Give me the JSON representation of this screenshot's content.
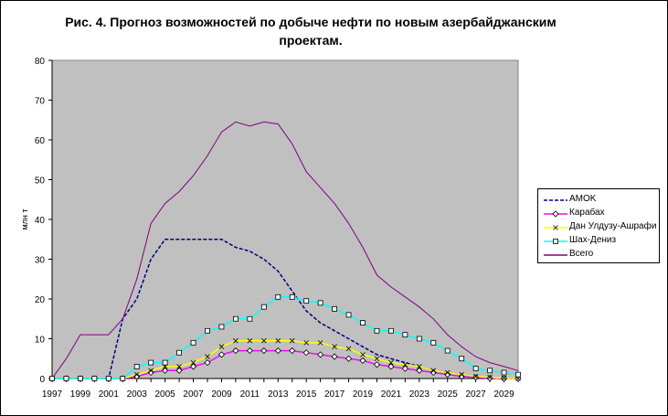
{
  "chart_data": {
    "type": "line",
    "title": "Рис. 4. Прогноз возможностей по добыче нефти по новым азербайджанским проектам.",
    "title_lines": [
      "Рис. 4. Прогноз возможностей по добыче нефти по новым азербайджанским",
      "проектам."
    ],
    "xlabel": "",
    "ylabel": "млн т",
    "ylim": [
      0,
      80
    ],
    "yticks": [
      0,
      10,
      20,
      30,
      40,
      50,
      60,
      70,
      80
    ],
    "xlim": [
      1997,
      2030
    ],
    "xticks": [
      1997,
      1999,
      2001,
      2003,
      2005,
      2007,
      2009,
      2011,
      2013,
      2015,
      2017,
      2019,
      2021,
      2023,
      2025,
      2027,
      2029
    ],
    "grid": false,
    "legend_position": "right",
    "x": [
      1997,
      1998,
      1999,
      2000,
      2001,
      2002,
      2003,
      2004,
      2005,
      2006,
      2007,
      2008,
      2009,
      2010,
      2011,
      2012,
      2013,
      2014,
      2015,
      2016,
      2017,
      2018,
      2019,
      2020,
      2021,
      2022,
      2023,
      2024,
      2025,
      2026,
      2027,
      2028,
      2029,
      2030
    ],
    "series": [
      {
        "name": "AMOK",
        "color": "#000080",
        "style": "dashed",
        "marker": "none",
        "values": [
          0,
          0,
          0,
          0,
          0,
          15,
          20,
          30,
          35,
          35,
          35,
          35,
          35,
          33,
          32,
          30,
          27,
          22,
          17,
          14,
          12,
          10,
          8,
          6,
          5,
          4,
          3,
          2,
          1.5,
          1,
          0.5,
          0,
          0,
          0
        ]
      },
      {
        "name": "Карабах",
        "color": "#ff00ff",
        "style": "solid",
        "marker": "diamond",
        "values": [
          0,
          0,
          0,
          0,
          0,
          0,
          0.5,
          1.5,
          2,
          2,
          3,
          4,
          6,
          7,
          7,
          7,
          7,
          7,
          6.5,
          6,
          5.5,
          5,
          4.5,
          3.5,
          3,
          2.5,
          2,
          1.5,
          1,
          0.5,
          0.3,
          0.1,
          0,
          0
        ]
      },
      {
        "name": "Дан Улдузу-Ашрафи",
        "color": "#ffff00",
        "style": "solid",
        "marker": "x",
        "values": [
          0,
          0,
          0,
          0,
          0,
          0,
          1,
          2,
          3,
          3,
          4,
          5.5,
          8,
          9.5,
          9.5,
          9.5,
          9.5,
          9.5,
          9,
          9,
          8,
          7.5,
          6,
          5,
          4,
          3.5,
          3,
          2,
          1.5,
          1,
          0.5,
          0.3,
          0.1,
          0
        ]
      },
      {
        "name": "Шах-Дениз",
        "color": "#00ffff",
        "style": "solid",
        "marker": "square",
        "values": [
          0,
          0,
          0,
          0,
          0,
          0,
          3,
          4,
          4,
          6.5,
          9,
          12,
          13,
          15,
          15,
          18,
          20.5,
          20.5,
          19.5,
          19,
          17.5,
          16,
          14,
          12,
          12,
          11,
          10,
          9,
          7,
          5,
          2.5,
          2,
          1.5,
          1
        ]
      },
      {
        "name": "Всего",
        "color": "#800080",
        "style": "solid",
        "marker": "none",
        "values": [
          0,
          5,
          11,
          11,
          11,
          15,
          25,
          39,
          44,
          47,
          51,
          56,
          62,
          64.5,
          63.5,
          64.5,
          64,
          59,
          52,
          48,
          44,
          39,
          33,
          26,
          23,
          20.5,
          18,
          15,
          11,
          8,
          5.5,
          4,
          3,
          2
        ]
      }
    ]
  }
}
